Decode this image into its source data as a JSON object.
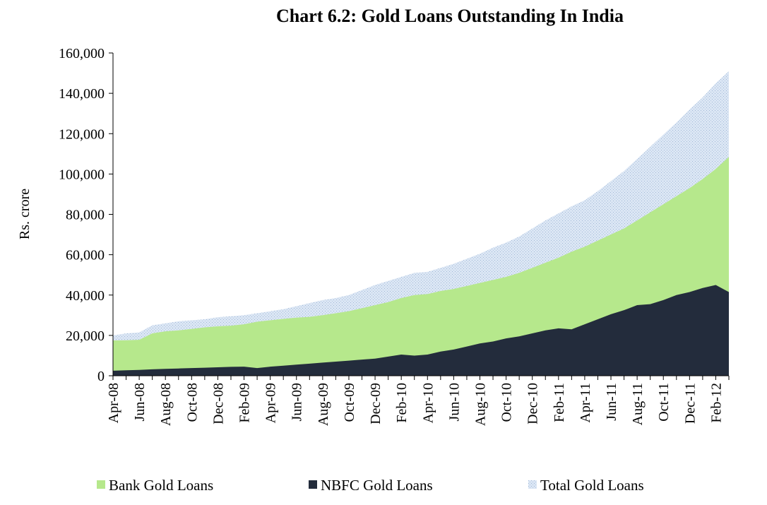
{
  "chart_data": {
    "type": "area",
    "title": "Chart  6.2: Gold Loans Outstanding In India",
    "xlabel": "",
    "ylabel": "Rs.  crore",
    "ylim": [
      0,
      160000
    ],
    "yticks": [
      0,
      20000,
      40000,
      60000,
      80000,
      100000,
      120000,
      140000,
      160000
    ],
    "ytick_labels": [
      "0",
      "20,000",
      "40,000",
      "60,000",
      "80,000",
      "100,000",
      "120,000",
      "140,000",
      "160,000"
    ],
    "x": [
      "Apr-08",
      "May-08",
      "Jun-08",
      "Jul-08",
      "Aug-08",
      "Sep-08",
      "Oct-08",
      "Nov-08",
      "Dec-08",
      "Jan-09",
      "Feb-09",
      "Mar-09",
      "Apr-09",
      "May-09",
      "Jun-09",
      "Jul-09",
      "Aug-09",
      "Sep-09",
      "Oct-09",
      "Nov-09",
      "Dec-09",
      "Jan-10",
      "Feb-10",
      "Mar-10",
      "Apr-10",
      "May-10",
      "Jun-10",
      "Jul-10",
      "Aug-10",
      "Sep-10",
      "Oct-10",
      "Nov-10",
      "Dec-10",
      "Jan-11",
      "Feb-11",
      "Mar-11",
      "Apr-11",
      "May-11",
      "Jun-11",
      "Jul-11",
      "Aug-11",
      "Sep-11",
      "Oct-11",
      "Nov-11",
      "Dec-11",
      "Jan-12",
      "Feb-12",
      "Mar-12"
    ],
    "xtick_labels": [
      "Apr-08",
      "Jun-08",
      "Aug-08",
      "Oct-08",
      "Dec-08",
      "Feb-09",
      "Apr-09",
      "Jun-09",
      "Aug-09",
      "Oct-09",
      "Dec-09",
      "Feb-10",
      "Apr-10",
      "Jun-10",
      "Aug-10",
      "Oct-10",
      "Dec-10",
      "Feb-11",
      "Apr-11",
      "Jun-11",
      "Aug-11",
      "Oct-11",
      "Dec-11",
      "Feb-12"
    ],
    "grid": false,
    "legend_position": "bottom",
    "series": [
      {
        "name": "Total Gold Loans",
        "color": "#cdddf0",
        "values": [
          20000,
          21000,
          21500,
          25000,
          26000,
          27000,
          27500,
          28000,
          29000,
          29500,
          30000,
          31000,
          32000,
          33000,
          34500,
          36000,
          37500,
          38500,
          40000,
          42500,
          45000,
          47000,
          49000,
          51000,
          51500,
          53500,
          55500,
          58000,
          60500,
          63500,
          66000,
          69000,
          73000,
          77000,
          80500,
          84000,
          87000,
          91500,
          96500,
          101500,
          107500,
          113500,
          119500,
          125500,
          132000,
          138000,
          145000,
          151000
        ]
      },
      {
        "name": "Bank Gold Loans",
        "color": "#b6e88c",
        "values": [
          17500,
          17600,
          17800,
          21000,
          22000,
          22500,
          23200,
          24000,
          24500,
          24800,
          25500,
          26800,
          27500,
          28200,
          28800,
          29200,
          30000,
          31000,
          32000,
          33500,
          35000,
          36500,
          38500,
          40000,
          40500,
          42000,
          43000,
          44500,
          46000,
          47500,
          49000,
          51000,
          53500,
          56000,
          58500,
          61500,
          64000,
          67000,
          70000,
          73000,
          77000,
          81000,
          85000,
          89000,
          93000,
          97500,
          102500,
          108500
        ]
      },
      {
        "name": "NBFC Gold Loans",
        "color": "#232c3c",
        "values": [
          2500,
          2700,
          2900,
          3200,
          3400,
          3600,
          3800,
          4000,
          4200,
          4400,
          4500,
          3800,
          4500,
          5000,
          5500,
          6000,
          6500,
          7000,
          7500,
          8000,
          8500,
          9500,
          10500,
          10000,
          10500,
          12000,
          13000,
          14500,
          16000,
          17000,
          18500,
          19500,
          21000,
          22500,
          23500,
          23000,
          25500,
          28000,
          30500,
          32500,
          35000,
          35500,
          37500,
          40000,
          41500,
          43500,
          45000,
          41500
        ]
      }
    ],
    "legend": [
      "Bank Gold Loans",
      "NBFC Gold Loans",
      "Total Gold Loans"
    ]
  }
}
